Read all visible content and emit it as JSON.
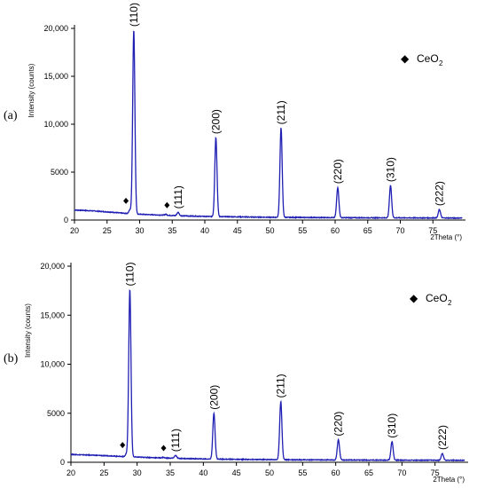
{
  "chart_data": [
    {
      "type": "line",
      "panel_label": "(a)",
      "xlabel": "2Theta (°)",
      "ylabel": "Intensity (counts)",
      "xlim": [
        20,
        80
      ],
      "ylim": [
        0,
        20000
      ],
      "x_ticks": [
        20,
        25,
        30,
        35,
        40,
        45,
        50,
        55,
        60,
        65,
        70,
        75
      ],
      "y_ticks": [
        0,
        5000,
        10000,
        15000,
        20000
      ],
      "y_tick_labels": [
        "0",
        "5000",
        "10,000",
        "15,000",
        "20,000"
      ],
      "line_color": "#1f1fb4",
      "baseline": [
        [
          20,
          1050
        ],
        [
          23,
          950
        ],
        [
          26,
          800
        ],
        [
          28.6,
          650
        ],
        [
          32,
          550
        ],
        [
          36,
          450
        ],
        [
          40,
          380
        ],
        [
          45,
          330
        ],
        [
          50,
          290
        ],
        [
          55,
          270
        ],
        [
          60,
          250
        ],
        [
          65,
          235
        ],
        [
          70,
          230
        ],
        [
          75,
          220
        ],
        [
          79.5,
          210
        ]
      ],
      "peaks": [
        {
          "x": 29.1,
          "y": 19800,
          "label": "(110)"
        },
        {
          "x": 41.7,
          "y": 8600,
          "label": "(200)"
        },
        {
          "x": 51.7,
          "y": 9600,
          "label": "(211)"
        },
        {
          "x": 60.4,
          "y": 3400,
          "label": "(220)"
        },
        {
          "x": 68.5,
          "y": 3600,
          "label": "(310)"
        },
        {
          "x": 76.0,
          "y": 1100,
          "label": "(222)"
        },
        {
          "x": 35.9,
          "y": 800,
          "label": "(111)"
        }
      ],
      "minor_peaks": [
        {
          "x": 28.5,
          "y": 1050
        },
        {
          "x": 34.0,
          "y": 600
        }
      ],
      "markers": [
        {
          "x": 27.9,
          "y": 2000
        },
        {
          "x": 34.2,
          "y": 1550
        }
      ],
      "legend": {
        "marker": "◆",
        "label": "CeO",
        "subscript": "2",
        "position": "top-right"
      }
    },
    {
      "type": "line",
      "panel_label": "(b)",
      "xlabel": "2Theta (°)",
      "ylabel": "Intensity (counts)",
      "xlim": [
        20,
        80
      ],
      "ylim": [
        0,
        20000
      ],
      "x_ticks": [
        20,
        25,
        30,
        35,
        40,
        45,
        50,
        55,
        60,
        65,
        70,
        75
      ],
      "y_ticks": [
        0,
        5000,
        10000,
        15000,
        20000
      ],
      "y_tick_labels": [
        "0",
        "5000",
        "10,000",
        "15,000",
        "20,000"
      ],
      "line_color": "#1f1fb4",
      "baseline": [
        [
          20,
          800
        ],
        [
          23,
          730
        ],
        [
          26,
          650
        ],
        [
          28.6,
          560
        ],
        [
          32,
          480
        ],
        [
          36,
          400
        ],
        [
          40,
          340
        ],
        [
          45,
          300
        ],
        [
          50,
          270
        ],
        [
          55,
          250
        ],
        [
          60,
          235
        ],
        [
          65,
          225
        ],
        [
          70,
          215
        ],
        [
          75,
          205
        ],
        [
          79.5,
          200
        ]
      ],
      "peaks": [
        {
          "x": 28.9,
          "y": 17600,
          "label": "(110)"
        },
        {
          "x": 41.6,
          "y": 5000,
          "label": "(200)"
        },
        {
          "x": 51.7,
          "y": 6200,
          "label": "(211)"
        },
        {
          "x": 60.4,
          "y": 2300,
          "label": "(220)"
        },
        {
          "x": 68.5,
          "y": 2100,
          "label": "(310)"
        },
        {
          "x": 76.1,
          "y": 900,
          "label": "(222)"
        },
        {
          "x": 35.8,
          "y": 700,
          "label": "(111)"
        }
      ],
      "minor_peaks": [
        {
          "x": 28.4,
          "y": 850
        },
        {
          "x": 33.9,
          "y": 500
        }
      ],
      "markers": [
        {
          "x": 27.8,
          "y": 1750
        },
        {
          "x": 34.0,
          "y": 1450
        }
      ],
      "legend": {
        "marker": "◆",
        "label": "CeO",
        "subscript": "2",
        "position": "top-right"
      }
    }
  ]
}
